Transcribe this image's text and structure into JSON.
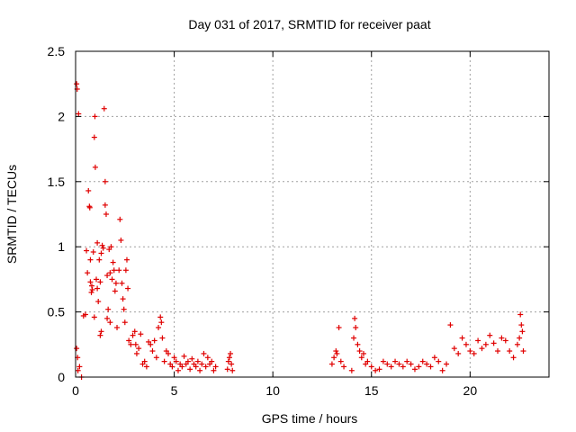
{
  "chart_data": {
    "type": "scatter",
    "title": "Day 031 of 2017, SRMTID for receiver paat",
    "xlabel": "GPS time / hours",
    "ylabel": "SRMTID / TECUs",
    "xlim": [
      0,
      24
    ],
    "ylim": [
      0,
      2.5
    ],
    "xticks": [
      0,
      5,
      10,
      15,
      20
    ],
    "xtick_labels": [
      "0",
      "5",
      "10",
      "15",
      "20"
    ],
    "yticks": [
      0,
      0.5,
      1,
      1.5,
      2,
      2.5
    ],
    "ytick_labels": [
      "0",
      "0.5",
      "1",
      "1.5",
      "2",
      "2.5"
    ],
    "grid": true,
    "marker": "+",
    "color": "#e00000",
    "series": [
      {
        "name": "SRMTID",
        "points": [
          [
            0.05,
            2.25
          ],
          [
            0.08,
            2.21
          ],
          [
            0.15,
            2.02
          ],
          [
            0.05,
            0.22
          ],
          [
            0.1,
            0.15
          ],
          [
            0.12,
            0.05
          ],
          [
            0.2,
            0.08
          ],
          [
            0.3,
            0.0
          ],
          [
            0.4,
            0.47
          ],
          [
            0.5,
            0.48
          ],
          [
            0.55,
            0.97
          ],
          [
            0.6,
            0.8
          ],
          [
            0.65,
            1.43
          ],
          [
            0.7,
            1.31
          ],
          [
            0.72,
            1.3
          ],
          [
            0.75,
            0.9
          ],
          [
            0.75,
            0.73
          ],
          [
            0.8,
            0.65
          ],
          [
            0.82,
            0.7
          ],
          [
            0.85,
            0.67
          ],
          [
            0.9,
            0.96
          ],
          [
            0.95,
            0.46
          ],
          [
            0.95,
            1.84
          ],
          [
            0.98,
            2.0
          ],
          [
            1.0,
            1.61
          ],
          [
            1.05,
            0.75
          ],
          [
            1.1,
            0.68
          ],
          [
            1.1,
            1.03
          ],
          [
            1.15,
            0.58
          ],
          [
            1.2,
            0.9
          ],
          [
            1.25,
            0.73
          ],
          [
            1.25,
            0.32
          ],
          [
            1.3,
            0.35
          ],
          [
            1.3,
            0.95
          ],
          [
            1.35,
            1.01
          ],
          [
            1.4,
            0.99
          ],
          [
            1.45,
            2.06
          ],
          [
            1.5,
            1.5
          ],
          [
            1.5,
            1.32
          ],
          [
            1.55,
            1.25
          ],
          [
            1.6,
            0.78
          ],
          [
            1.6,
            0.45
          ],
          [
            1.65,
            0.52
          ],
          [
            1.7,
            0.98
          ],
          [
            1.75,
            0.42
          ],
          [
            1.75,
            0.8
          ],
          [
            1.8,
            1.0
          ],
          [
            1.85,
            0.75
          ],
          [
            1.9,
            0.88
          ],
          [
            1.95,
            0.82
          ],
          [
            2.0,
            0.66
          ],
          [
            2.05,
            0.72
          ],
          [
            2.1,
            0.38
          ],
          [
            2.2,
            0.82
          ],
          [
            2.25,
            1.21
          ],
          [
            2.3,
            1.05
          ],
          [
            2.35,
            0.72
          ],
          [
            2.4,
            0.6
          ],
          [
            2.45,
            0.52
          ],
          [
            2.5,
            0.42
          ],
          [
            2.55,
            0.82
          ],
          [
            2.6,
            0.9
          ],
          [
            2.65,
            0.68
          ],
          [
            2.7,
            0.28
          ],
          [
            2.8,
            0.25
          ],
          [
            2.9,
            0.32
          ],
          [
            3.0,
            0.35
          ],
          [
            3.05,
            0.25
          ],
          [
            3.1,
            0.18
          ],
          [
            3.2,
            0.22
          ],
          [
            3.3,
            0.33
          ],
          [
            3.4,
            0.1
          ],
          [
            3.5,
            0.12
          ],
          [
            3.6,
            0.08
          ],
          [
            3.7,
            0.27
          ],
          [
            3.8,
            0.25
          ],
          [
            3.9,
            0.2
          ],
          [
            4.0,
            0.28
          ],
          [
            4.1,
            0.15
          ],
          [
            4.2,
            0.38
          ],
          [
            4.3,
            0.46
          ],
          [
            4.35,
            0.42
          ],
          [
            4.4,
            0.3
          ],
          [
            4.5,
            0.12
          ],
          [
            4.6,
            0.2
          ],
          [
            4.7,
            0.18
          ],
          [
            4.8,
            0.1
          ],
          [
            4.9,
            0.08
          ],
          [
            5.0,
            0.15
          ],
          [
            5.1,
            0.12
          ],
          [
            5.2,
            0.05
          ],
          [
            5.3,
            0.1
          ],
          [
            5.4,
            0.08
          ],
          [
            5.5,
            0.16
          ],
          [
            5.6,
            0.1
          ],
          [
            5.7,
            0.12
          ],
          [
            5.8,
            0.06
          ],
          [
            5.9,
            0.14
          ],
          [
            6.0,
            0.1
          ],
          [
            6.1,
            0.08
          ],
          [
            6.2,
            0.12
          ],
          [
            6.3,
            0.05
          ],
          [
            6.4,
            0.1
          ],
          [
            6.5,
            0.18
          ],
          [
            6.6,
            0.08
          ],
          [
            6.7,
            0.15
          ],
          [
            6.8,
            0.1
          ],
          [
            6.9,
            0.12
          ],
          [
            7.0,
            0.05
          ],
          [
            7.1,
            0.08
          ],
          [
            7.7,
            0.06
          ],
          [
            7.75,
            0.12
          ],
          [
            7.8,
            0.15
          ],
          [
            7.85,
            0.18
          ],
          [
            7.9,
            0.1
          ],
          [
            7.95,
            0.05
          ],
          [
            13.0,
            0.1
          ],
          [
            13.1,
            0.15
          ],
          [
            13.2,
            0.2
          ],
          [
            13.25,
            0.18
          ],
          [
            13.35,
            0.38
          ],
          [
            13.45,
            0.12
          ],
          [
            13.6,
            0.08
          ],
          [
            14.0,
            0.05
          ],
          [
            14.1,
            0.3
          ],
          [
            14.15,
            0.45
          ],
          [
            14.2,
            0.38
          ],
          [
            14.3,
            0.25
          ],
          [
            14.4,
            0.2
          ],
          [
            14.5,
            0.15
          ],
          [
            14.6,
            0.18
          ],
          [
            14.7,
            0.1
          ],
          [
            14.8,
            0.12
          ],
          [
            15.0,
            0.08
          ],
          [
            15.2,
            0.05
          ],
          [
            15.4,
            0.06
          ],
          [
            15.6,
            0.12
          ],
          [
            15.8,
            0.1
          ],
          [
            16.0,
            0.08
          ],
          [
            16.2,
            0.12
          ],
          [
            16.4,
            0.1
          ],
          [
            16.6,
            0.08
          ],
          [
            16.8,
            0.12
          ],
          [
            17.0,
            0.1
          ],
          [
            17.2,
            0.06
          ],
          [
            17.4,
            0.08
          ],
          [
            17.6,
            0.12
          ],
          [
            17.8,
            0.1
          ],
          [
            18.0,
            0.08
          ],
          [
            18.2,
            0.15
          ],
          [
            18.4,
            0.12
          ],
          [
            18.6,
            0.05
          ],
          [
            18.8,
            0.1
          ],
          [
            19.0,
            0.4
          ],
          [
            19.2,
            0.22
          ],
          [
            19.4,
            0.18
          ],
          [
            19.6,
            0.3
          ],
          [
            19.8,
            0.25
          ],
          [
            20.0,
            0.2
          ],
          [
            20.2,
            0.18
          ],
          [
            20.4,
            0.28
          ],
          [
            20.6,
            0.22
          ],
          [
            20.8,
            0.25
          ],
          [
            21.0,
            0.32
          ],
          [
            21.2,
            0.26
          ],
          [
            21.4,
            0.2
          ],
          [
            21.6,
            0.3
          ],
          [
            21.8,
            0.28
          ],
          [
            22.0,
            0.2
          ],
          [
            22.2,
            0.15
          ],
          [
            22.4,
            0.25
          ],
          [
            22.5,
            0.3
          ],
          [
            22.55,
            0.48
          ],
          [
            22.6,
            0.4
          ],
          [
            22.65,
            0.35
          ],
          [
            22.7,
            0.2
          ]
        ]
      }
    ]
  }
}
